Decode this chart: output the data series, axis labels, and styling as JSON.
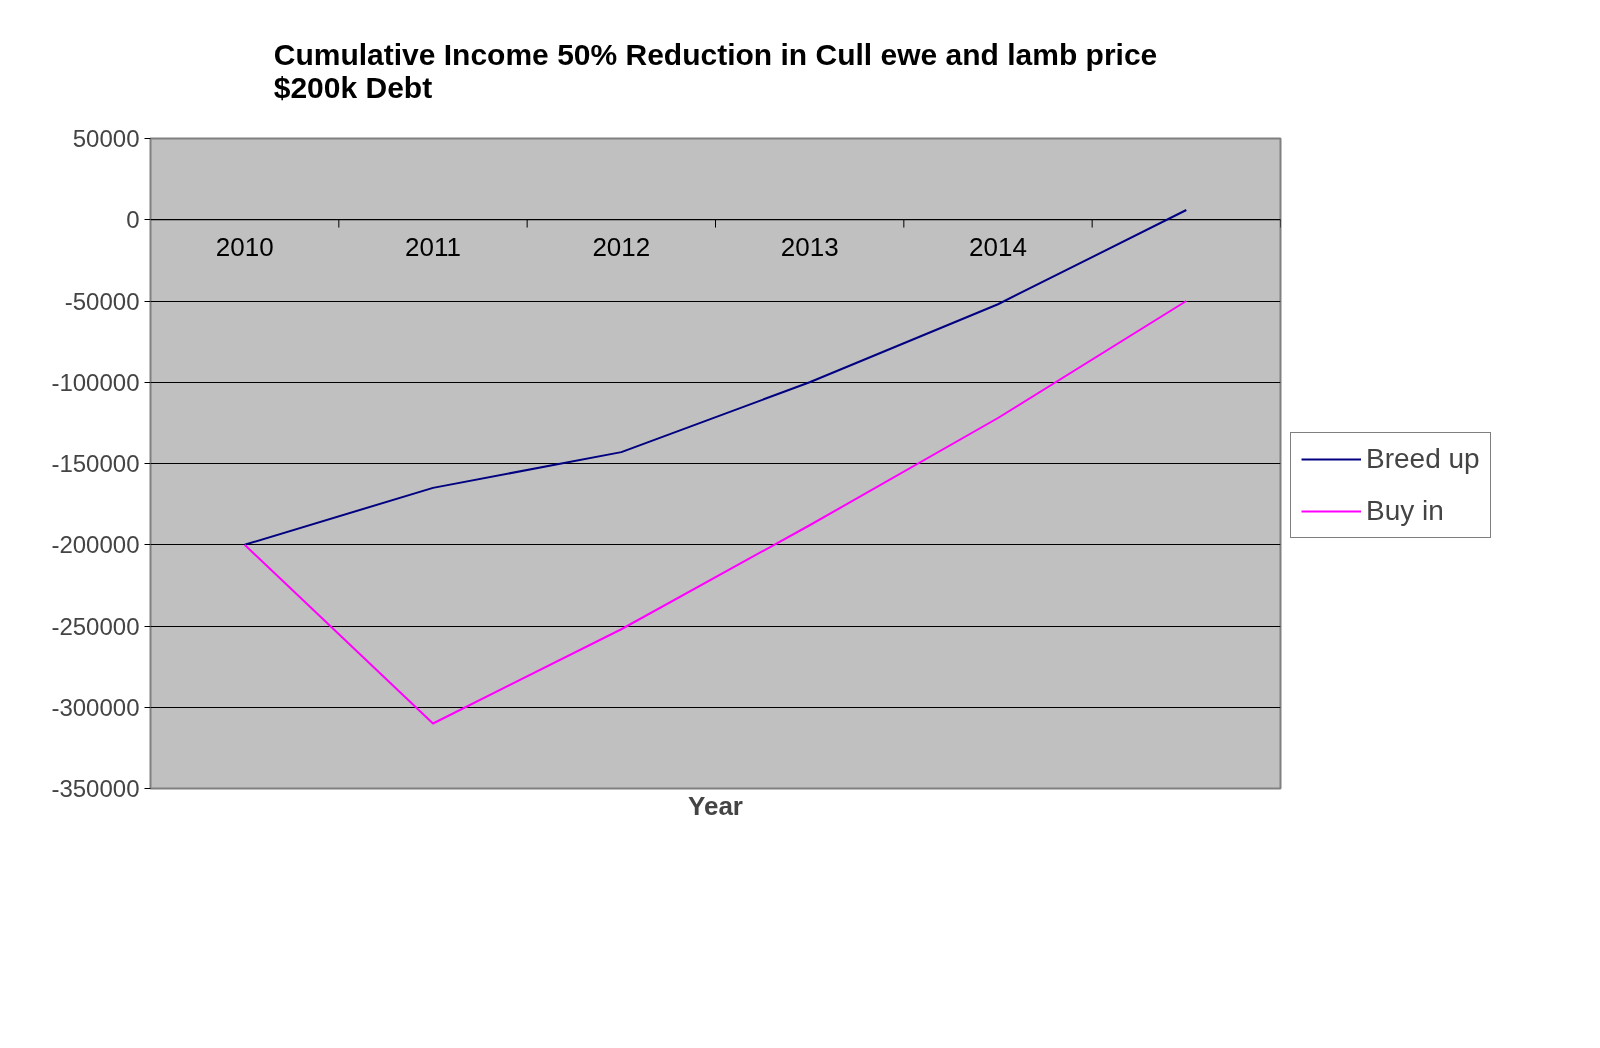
{
  "chart_data": {
    "type": "line",
    "title": "Cumulative Income 50% Reduction in Cull ewe and lamb price\n$200k Debt",
    "xlabel": "Year",
    "categories": [
      "2010",
      "2011",
      "2012",
      "2013",
      "2014",
      null
    ],
    "series": [
      {
        "name": "Breed up",
        "color": "#000080",
        "values": [
          -200000,
          -165000,
          -143000,
          -100000,
          -52000,
          6000
        ]
      },
      {
        "name": "Buy in",
        "color": "#ff00ff",
        "values": [
          -200000,
          -310000,
          -252000,
          -188000,
          -122000,
          -50000
        ]
      }
    ],
    "ylim": [
      -350000,
      50000
    ],
    "yticks": [
      -350000,
      -300000,
      -250000,
      -200000,
      -150000,
      -100000,
      -50000,
      0,
      50000
    ],
    "grid": "y",
    "legend": "right"
  }
}
